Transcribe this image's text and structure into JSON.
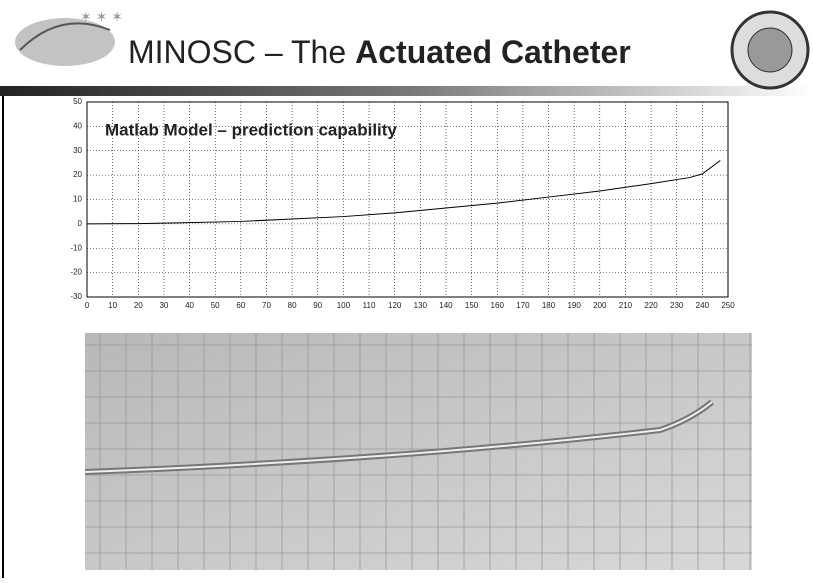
{
  "header": {
    "title_plain": "MINOSC – The",
    "title_bold": "Actuated Catheter"
  },
  "chart_data": {
    "type": "line",
    "title": "Matlab Model – prediction capability",
    "x": [
      0,
      20,
      40,
      60,
      80,
      100,
      120,
      140,
      160,
      180,
      200,
      220,
      235,
      240,
      247
    ],
    "values": [
      0,
      0.1,
      0.5,
      1,
      2,
      3,
      4.5,
      6.5,
      8.5,
      11,
      13.5,
      16.5,
      19,
      20.5,
      26
    ],
    "color": "#000000",
    "xlim": [
      0,
      250
    ],
    "xticks": [
      0,
      10,
      20,
      30,
      40,
      50,
      60,
      70,
      80,
      90,
      100,
      110,
      120,
      130,
      140,
      150,
      160,
      170,
      180,
      190,
      200,
      210,
      220,
      230,
      240,
      250
    ],
    "ylim": [
      -30,
      50
    ],
    "yticks": [
      -30,
      -20,
      -10,
      0,
      10,
      20,
      30,
      40,
      50
    ],
    "grid": true
  }
}
